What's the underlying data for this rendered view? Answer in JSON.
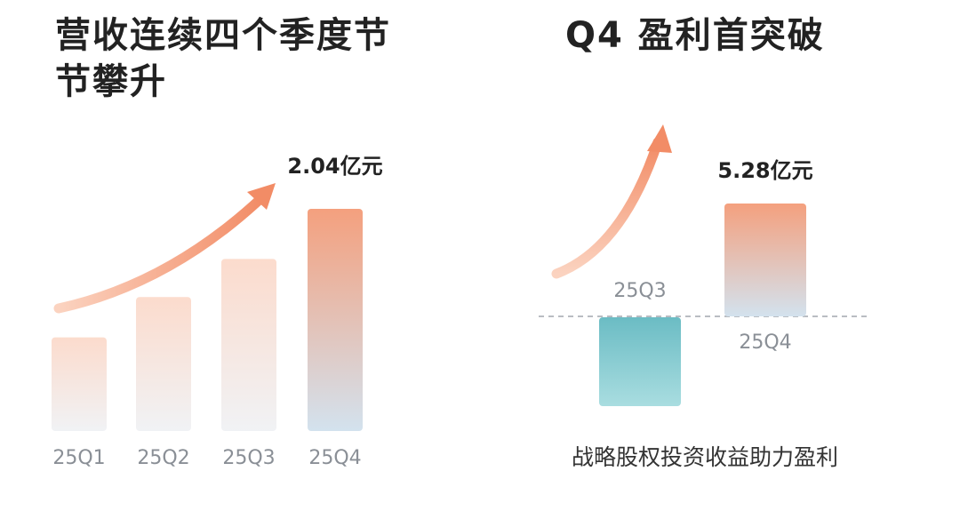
{
  "chart_data": [
    {
      "type": "bar",
      "title": "营收连续四个季度节节攀升",
      "categories": [
        "25Q1",
        "25Q2",
        "25Q3",
        "25Q4"
      ],
      "values": [
        0.86,
        1.23,
        1.58,
        2.04
      ],
      "value_labels": [
        null,
        null,
        null,
        "2.04亿元"
      ],
      "color": "#f4a07e"
    },
    {
      "type": "bar",
      "title": "Q4 盈利首突破",
      "categories": [
        "25Q3",
        "25Q4"
      ],
      "values": [
        -4.16,
        5.28
      ],
      "value_labels": [
        null,
        "5.28亿元"
      ],
      "colors": [
        "#6bbcc4",
        "#f4a07e"
      ],
      "annotation": "战略股权投资收益助力盈利"
    }
  ]
}
